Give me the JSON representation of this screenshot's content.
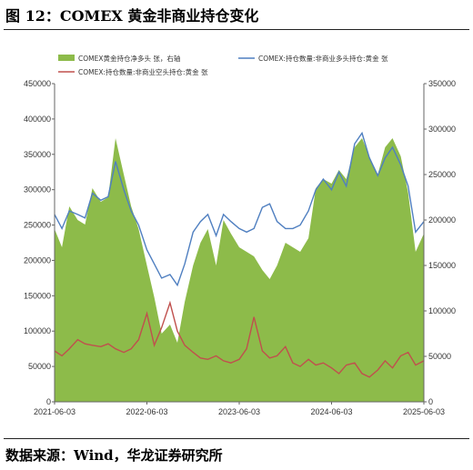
{
  "title": "图 12：COMEX 黄金非商业持仓变化",
  "source": "数据来源：Wind，华龙证券研究所",
  "chart_data": {
    "type": "area+line",
    "x_ticks": [
      "2021-06-03",
      "2022-06-03",
      "2023-06-03",
      "2024-06-03",
      "2025-06-03"
    ],
    "x_range": [
      "2021-06-03",
      "2025-06-03"
    ],
    "y_left_ticks": [
      "0",
      "50000",
      "100000",
      "150000",
      "200000",
      "250000",
      "300000",
      "350000",
      "400000",
      "450000"
    ],
    "y_left_range": [
      0,
      450000
    ],
    "y_right_ticks": [
      "0",
      "50000",
      "100000",
      "150000",
      "200000",
      "250000",
      "300000",
      "350000"
    ],
    "y_right_range": [
      0,
      350000
    ],
    "legend": [
      "COMEX黄金持仓净多头  张，右轴",
      "COMEX:持仓数量:非商业多头持仓:黄金  张",
      "COMEX:持仓数量:非商业空头持仓:黄金  张"
    ],
    "colors": {
      "net_long": "#8DBB4A",
      "long": "#4F7FC0",
      "short": "#C0504D"
    },
    "x": [
      2021.42,
      2021.5,
      2021.58,
      2021.67,
      2021.75,
      2021.83,
      2021.92,
      2022.0,
      2022.08,
      2022.17,
      2022.25,
      2022.33,
      2022.42,
      2022.5,
      2022.58,
      2022.67,
      2022.75,
      2022.83,
      2022.92,
      2023.0,
      2023.08,
      2023.17,
      2023.25,
      2023.33,
      2023.42,
      2023.5,
      2023.58,
      2023.67,
      2023.75,
      2023.83,
      2023.92,
      2024.0,
      2024.08,
      2024.17,
      2024.25,
      2024.33,
      2024.42,
      2024.5,
      2024.58,
      2024.67,
      2024.75,
      2024.83,
      2024.92,
      2025.0,
      2025.08,
      2025.17,
      2025.25,
      2025.33,
      2025.42
    ],
    "series": [
      {
        "name": "COMEX黄金持仓净多头  张，右轴",
        "axis": "right",
        "values": [
          190000,
          170000,
          215000,
          200000,
          195000,
          235000,
          220000,
          225000,
          290000,
          250000,
          215000,
          190000,
          150000,
          115000,
          75000,
          85000,
          65000,
          110000,
          150000,
          175000,
          190000,
          150000,
          200000,
          185000,
          170000,
          165000,
          160000,
          145000,
          135000,
          150000,
          175000,
          170000,
          165000,
          180000,
          235000,
          245000,
          240000,
          255000,
          245000,
          280000,
          290000,
          270000,
          250000,
          280000,
          290000,
          270000,
          230000,
          165000,
          185000
        ]
      },
      {
        "name": "COMEX:持仓数量:非商业多头持仓:黄金  张",
        "axis": "left",
        "values": [
          265000,
          245000,
          270000,
          265000,
          260000,
          295000,
          285000,
          290000,
          340000,
          300000,
          270000,
          250000,
          215000,
          195000,
          175000,
          180000,
          165000,
          195000,
          240000,
          255000,
          265000,
          235000,
          265000,
          255000,
          245000,
          240000,
          245000,
          275000,
          280000,
          255000,
          245000,
          245000,
          250000,
          270000,
          300000,
          315000,
          300000,
          325000,
          305000,
          365000,
          380000,
          345000,
          320000,
          345000,
          360000,
          335000,
          305000,
          240000,
          255000
        ]
      },
      {
        "name": "COMEX:持仓数量:非商业空头持仓:黄金  张",
        "axis": "left",
        "values": [
          72000,
          65000,
          75000,
          88000,
          82000,
          80000,
          78000,
          82000,
          75000,
          70000,
          75000,
          88000,
          125000,
          80000,
          105000,
          140000,
          100000,
          80000,
          70000,
          62000,
          60000,
          65000,
          58000,
          55000,
          60000,
          75000,
          120000,
          72000,
          62000,
          65000,
          78000,
          55000,
          50000,
          60000,
          52000,
          55000,
          48000,
          40000,
          52000,
          55000,
          40000,
          35000,
          45000,
          58000,
          48000,
          65000,
          70000,
          52000,
          58000
        ]
      }
    ]
  }
}
